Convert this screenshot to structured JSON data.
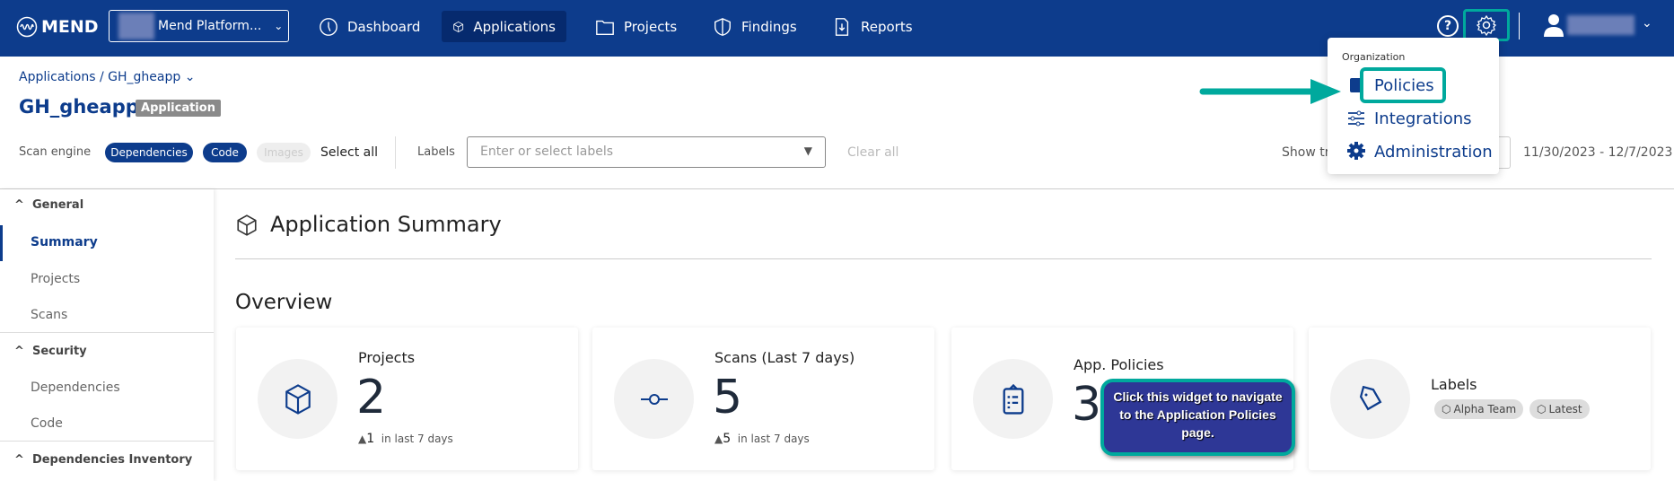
{
  "header": {
    "logo": "MEND",
    "org_selector": "Mend Platform...",
    "nav": [
      {
        "label": "Dashboard",
        "icon": "dashboard-icon"
      },
      {
        "label": "Applications",
        "icon": "cube-icon",
        "active": true
      },
      {
        "label": "Projects",
        "icon": "folder-icon"
      },
      {
        "label": "Findings",
        "icon": "shield-icon"
      },
      {
        "label": "Reports",
        "icon": "report-icon"
      }
    ]
  },
  "breadcrumb": {
    "root": "Applications",
    "sep": "/",
    "current": "GH_gheapp"
  },
  "title": {
    "name": "GH_gheapp",
    "badge": "Application"
  },
  "filters": {
    "scan_engine_label": "Scan engine",
    "engines": [
      "Dependencies",
      "Code",
      "Images"
    ],
    "select_all": "Select all",
    "labels_label": "Labels",
    "labels_placeholder": "Enter or select labels",
    "clear_all": "Clear all",
    "show_trend": "Show tr",
    "date_range": "11/30/2023 - 12/7/2023"
  },
  "sidebar": {
    "sections": [
      {
        "title": "General",
        "items": [
          "Summary",
          "Projects",
          "Scans"
        ]
      },
      {
        "title": "Security",
        "items": [
          "Dependencies",
          "Code"
        ]
      },
      {
        "title": "Dependencies Inventory",
        "items": []
      }
    ],
    "active": "Summary"
  },
  "main": {
    "title": "Application Summary",
    "overview": "Overview",
    "cards": [
      {
        "title": "Projects",
        "value": "2",
        "delta": "1",
        "delta_text": "in last 7 days"
      },
      {
        "title": "Scans (Last 7 days)",
        "value": "5",
        "delta": "5",
        "delta_text": "in last 7 days"
      },
      {
        "title": "App. Policies",
        "value": "3"
      },
      {
        "title": "Labels",
        "chips": [
          "Alpha Team",
          "Latest"
        ]
      }
    ]
  },
  "settings_menu": {
    "section": "Organization",
    "items": [
      "Policies",
      "Integrations",
      "Administration"
    ]
  },
  "callout": "Click this widget to navigate to the Application Policies page.",
  "colors": {
    "brand": "#0d3c8c",
    "highlight": "#00a99d",
    "callout_bg": "#2e3796"
  }
}
